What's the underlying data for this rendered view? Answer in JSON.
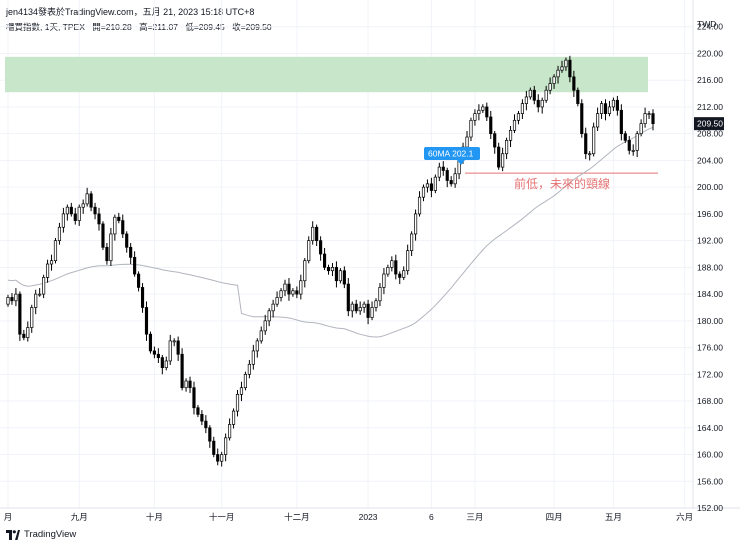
{
  "header": {
    "author_line": "jen4134發表於TradingView.com，五月 21, 2023 15:18 UTC+8",
    "symbol_desc": "櫃買指數, 1天, TPEX",
    "open_label": "開=210.28",
    "high_label": "高=211.07",
    "low_label": "低=209.45",
    "close_label": "收=209.50"
  },
  "footer": {
    "brand": "TradingView"
  },
  "annotations": {
    "ma_label": "60MA 202.1",
    "neckline_label": "前低，未來的頸線",
    "price_tag": "209.50",
    "currency": "TWD"
  },
  "colors": {
    "up": "#ffffff",
    "down": "#000000",
    "candle_border": "#000000",
    "ma_line": "#b2b5be",
    "zone_fill": "#c8e6c9",
    "neckline": "#e57373",
    "ma_tag": "#2196f3"
  },
  "chart_data": {
    "type": "candlestick",
    "y_axis": {
      "range": [
        152,
        228
      ],
      "ticks": [
        224.0,
        220.0,
        216.0,
        212.0,
        208.0,
        204.0,
        200.0,
        196.0,
        192.0,
        188.0,
        184.0,
        180.0,
        176.0,
        172.0,
        168.0,
        164.0,
        160.0,
        156.0,
        152.0
      ],
      "tick_labels": [
        "224.00",
        "220.00",
        "216.00",
        "212.00",
        "208.00",
        "204.00",
        "200.00",
        "196.00",
        "192.00",
        "188.00",
        "184.00",
        "180.00",
        "176.00",
        "172.00",
        "168.00",
        "164.00",
        "160.00",
        "156.00",
        "152.00"
      ]
    },
    "x_axis": {
      "labels": [
        "月",
        "九月",
        "十月",
        "十一月",
        "十二月",
        "2023",
        "6",
        "三月",
        "四月",
        "五月",
        "六月"
      ],
      "label_bar_index": [
        0,
        18,
        37,
        54,
        73,
        91,
        107,
        118,
        138,
        153,
        171
      ]
    },
    "resistance_zone": [
      214.2,
      219.5
    ],
    "neckline_level": 202.1,
    "last_close": 209.5,
    "ma60_last": 202.1,
    "closes": [
      183.5,
      183,
      184,
      178,
      177.5,
      179,
      182,
      184,
      184,
      186.5,
      188.5,
      189,
      192,
      194,
      196,
      197,
      196,
      195,
      197,
      197.5,
      199,
      197,
      196,
      194.5,
      191,
      189,
      193,
      195.5,
      195,
      193,
      191,
      189.5,
      187,
      185,
      182,
      178,
      175.5,
      175,
      174.5,
      173,
      174,
      177,
      177,
      175,
      170,
      171,
      170,
      167,
      166,
      165,
      164,
      162,
      160,
      159,
      160,
      162.5,
      164.5,
      166.5,
      169,
      170,
      172,
      173.5,
      175.5,
      177,
      178.5,
      180,
      181.5,
      182.5,
      183.5,
      184.5,
      185.5,
      184,
      184.5,
      184,
      186,
      189,
      192,
      194,
      192,
      190,
      188,
      187.5,
      188,
      186,
      187.5,
      185.5,
      181.5,
      182.5,
      181.5,
      182,
      182.5,
      180.5,
      182,
      183,
      185,
      187,
      188,
      189,
      187,
      186.5,
      187.5,
      190.5,
      193,
      196,
      198.5,
      200,
      200.5,
      199.5,
      201.5,
      203,
      202.5,
      201,
      200.5,
      202,
      204.5,
      206,
      207.5,
      210,
      211,
      211.5,
      212,
      210.5,
      208,
      206,
      203,
      205,
      207,
      208.5,
      210,
      211,
      212.5,
      213.5,
      214.5,
      213,
      212,
      213,
      214.5,
      215.5,
      216.5,
      217.5,
      218,
      219,
      216.5,
      214.5,
      212.5,
      208,
      205,
      205,
      209,
      211,
      212.5,
      211,
      212,
      213,
      211.5,
      208,
      207,
      205.5,
      205.5,
      208,
      209.5,
      211,
      211,
      209.5
    ]
  }
}
